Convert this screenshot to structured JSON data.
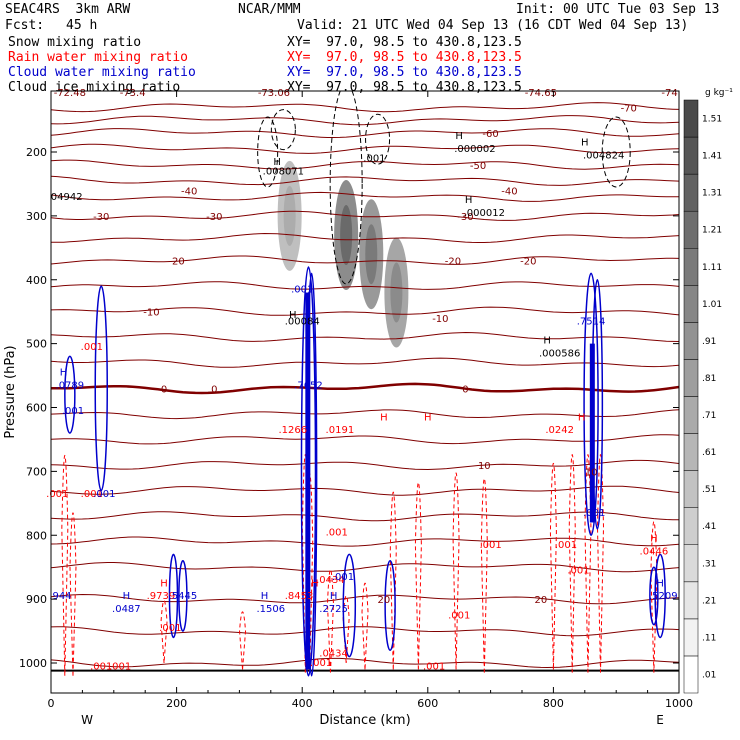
{
  "header": {
    "model": "SEAC4RS  3km ARW",
    "org": "NCAR/MMM",
    "init": "Init: 00 UTC Tue 03 Sep 13",
    "fcst_label": "Fcst:",
    "fcst_value": "45 h",
    "valid": "Valid: 21 UTC Wed 04 Sep 13 (16 CDT Wed 04 Sep 13)"
  },
  "fields": [
    {
      "name": "Snow mixing ratio",
      "xy": "XY=  97.0, 98.5 to 430.8,123.5",
      "color": "#000000"
    },
    {
      "name": "Rain water mixing ratio",
      "xy": "XY=  97.0, 98.5 to 430.8,123.5",
      "color": "#ff0000"
    },
    {
      "name": "Cloud water mixing ratio",
      "xy": "XY=  97.0, 98.5 to 430.8,123.5",
      "color": "#0000cc"
    },
    {
      "name": "Cloud ice mixing ratio",
      "xy": "XY=  97.0, 98.5 to 430.8,123.5",
      "color": "#000000"
    }
  ],
  "chart_data": {
    "type": "heatmap",
    "xlabel": "Distance (km)",
    "ylabel": "Pressure (hPa)",
    "xlim": [
      0,
      1000
    ],
    "ylim": [
      1050,
      100
    ],
    "x_ticks": [
      "0",
      "200",
      "400",
      "600",
      "800",
      "1000"
    ],
    "x_tick_values": [
      0,
      200,
      400,
      600,
      800,
      1000
    ],
    "y_ticks": [
      "200",
      "300",
      "400",
      "500",
      "600",
      "700",
      "800",
      "900",
      "1000"
    ],
    "y_tick_values": [
      200,
      300,
      400,
      500,
      600,
      700,
      800,
      900,
      1000
    ],
    "endpoints": {
      "left": "W",
      "right": "E"
    },
    "colorbar": {
      "unit_label": "g kg⁻¹",
      "levels": [
        ".01",
        ".11",
        ".21",
        ".31",
        ".41",
        ".51",
        ".61",
        ".71",
        ".81",
        ".91",
        "1.01",
        "1.11",
        "1.21",
        "1.31",
        "1.41",
        "1.51"
      ],
      "colors": [
        "#ffffff",
        "#f2f2f2",
        "#e6e6e6",
        "#dadada",
        "#cecece",
        "#c2c2c2",
        "#b6b6b6",
        "#aaaaaa",
        "#9e9e9e",
        "#929292",
        "#868686",
        "#7a7a7a",
        "#6e6e6e",
        "#626262",
        "#565656",
        "#4a4a4a"
      ]
    },
    "shading": [
      {
        "x": 380,
        "p": 300,
        "amount": 0.5
      },
      {
        "x": 470,
        "p": 330,
        "amount": 0.9
      },
      {
        "x": 510,
        "p": 360,
        "amount": 0.8
      },
      {
        "x": 550,
        "p": 420,
        "amount": 0.7
      }
    ],
    "temperature_contours": {
      "color": "#800000",
      "isotherms": [
        {
          "label": "0",
          "p": 570,
          "x_label": 180
        },
        {
          "label": "0",
          "p": 570,
          "x_label": 260
        },
        {
          "label": "0",
          "p": 570,
          "x_label": 660
        },
        {
          "label": "10",
          "p": 690,
          "x_label": 690
        },
        {
          "label": "10",
          "p": 700,
          "x_label": 860
        },
        {
          "label": "20",
          "p": 900,
          "x_label": 530
        },
        {
          "label": "20",
          "p": 900,
          "x_label": 780
        },
        {
          "label": "-10",
          "p": 450,
          "x_label": 160
        },
        {
          "label": "-10",
          "p": 460,
          "x_label": 620
        },
        {
          "label": "-20",
          "p": 370,
          "x_label": 200
        },
        {
          "label": "-20",
          "p": 370,
          "x_label": 640
        },
        {
          "label": "-20",
          "p": 370,
          "x_label": 760
        },
        {
          "label": "-30",
          "p": 300,
          "x_label": 80
        },
        {
          "label": "-30",
          "p": 300,
          "x_label": 260
        },
        {
          "label": "-30",
          "p": 300,
          "x_label": 660
        },
        {
          "label": "-40",
          "p": 260,
          "x_label": 220
        },
        {
          "label": "-40",
          "p": 260,
          "x_label": 730
        },
        {
          "label": "-50",
          "p": 220,
          "x_label": 680
        },
        {
          "label": "-60",
          "p": 170,
          "x_label": 700
        },
        {
          "label": "-70",
          "p": 130,
          "x_label": 920
        }
      ],
      "labels_top": [
        {
          "label": "-72.48",
          "x": 30
        },
        {
          "label": "-73.4",
          "x": 130
        },
        {
          "label": "-73.06",
          "x": 355
        },
        {
          "label": "-74.65",
          "x": 780
        },
        {
          "label": "-74",
          "x": 985
        }
      ]
    },
    "rain_labels": [
      {
        "label": ".001",
        "x": 10,
        "p": 740
      },
      {
        "label": ".001",
        "x": 65,
        "p": 740
      },
      {
        "label": ".001",
        "x": 80,
        "p": 1010
      },
      {
        "label": ".001",
        "x": 110,
        "p": 1010
      },
      {
        "label": ".9739",
        "x": 175,
        "p": 900
      },
      {
        "label": ".001",
        "x": 190,
        "p": 950
      },
      {
        "label": ".8453",
        "x": 395,
        "p": 900
      },
      {
        "label": ".001",
        "x": 455,
        "p": 800
      },
      {
        "label": ".0434",
        "x": 445,
        "p": 875
      },
      {
        "label": ".0434",
        "x": 450,
        "p": 990
      },
      {
        "label": ".001",
        "x": 430,
        "p": 1005
      },
      {
        "label": ".001",
        "x": 610,
        "p": 1010
      },
      {
        "label": ".001",
        "x": 650,
        "p": 930
      },
      {
        "label": ".001",
        "x": 700,
        "p": 820
      },
      {
        "label": ".001",
        "x": 820,
        "p": 820
      },
      {
        "label": ".001",
        "x": 840,
        "p": 860
      },
      {
        "label": ".0446",
        "x": 960,
        "p": 830
      },
      {
        "label": ".1266",
        "x": 385,
        "p": 640
      },
      {
        "label": ".0191",
        "x": 460,
        "p": 640
      },
      {
        "label": ".0242",
        "x": 810,
        "p": 640
      },
      {
        "label": ".001",
        "x": 65,
        "p": 510
      }
    ],
    "rain_highs": [
      {
        "label": "H",
        "x": 180,
        "p": 880
      },
      {
        "label": "H",
        "x": 420,
        "p": 880
      },
      {
        "label": "H",
        "x": 530,
        "p": 620
      },
      {
        "label": "H",
        "x": 600,
        "p": 620
      },
      {
        "label": "H",
        "x": 845,
        "p": 620
      },
      {
        "label": "H",
        "x": 960,
        "p": 810
      }
    ],
    "cloud_labels": [
      {
        "label": ".0789",
        "x": 30,
        "p": 570
      },
      {
        "label": ".001",
        "x": 35,
        "p": 610
      },
      {
        "label": ".001",
        "x": 85,
        "p": 740
      },
      {
        "label": ".0487",
        "x": 120,
        "p": 920
      },
      {
        "label": ".5445",
        "x": 210,
        "p": 900
      },
      {
        "label": ".1506",
        "x": 350,
        "p": 920
      },
      {
        "label": ".7652",
        "x": 410,
        "p": 570
      },
      {
        "label": ".2725",
        "x": 450,
        "p": 920
      },
      {
        "label": ".001",
        "x": 465,
        "p": 870
      },
      {
        "label": ".001",
        "x": 400,
        "p": 420
      },
      {
        "label": ".7514",
        "x": 860,
        "p": 470
      },
      {
        "label": ".5209",
        "x": 975,
        "p": 900
      },
      {
        "label": ".944",
        "x": 15,
        "p": 900
      },
      {
        "label": ".001",
        "x": 865,
        "p": 770
      }
    ],
    "cloud_highs": [
      {
        "label": "H",
        "x": 20,
        "p": 550
      },
      {
        "label": "H",
        "x": 120,
        "p": 900
      },
      {
        "label": "H",
        "x": 340,
        "p": 900
      },
      {
        "label": "H",
        "x": 450,
        "p": 900
      },
      {
        "label": "H",
        "x": 970,
        "p": 880
      }
    ],
    "ice_labels": [
      {
        "label": ".000002",
        "x": 675,
        "p": 200
      },
      {
        "label": ".004824",
        "x": 880,
        "p": 210
      },
      {
        "label": ".008071",
        "x": 370,
        "p": 235
      },
      {
        "label": ".000012",
        "x": 690,
        "p": 300
      },
      {
        "label": ".000586",
        "x": 810,
        "p": 520
      },
      {
        "label": ".00084",
        "x": 400,
        "p": 470
      },
      {
        "label": ".001",
        "x": 515,
        "p": 215
      },
      {
        "label": "04942",
        "x": 25,
        "p": 275
      }
    ],
    "ice_highs": [
      {
        "label": "H",
        "x": 650,
        "p": 180
      },
      {
        "label": "H",
        "x": 850,
        "p": 190
      },
      {
        "label": "H",
        "x": 360,
        "p": 220
      },
      {
        "label": "H",
        "x": 665,
        "p": 280
      },
      {
        "label": "H",
        "x": 790,
        "p": 500
      },
      {
        "label": "H",
        "x": 385,
        "p": 460
      }
    ]
  }
}
